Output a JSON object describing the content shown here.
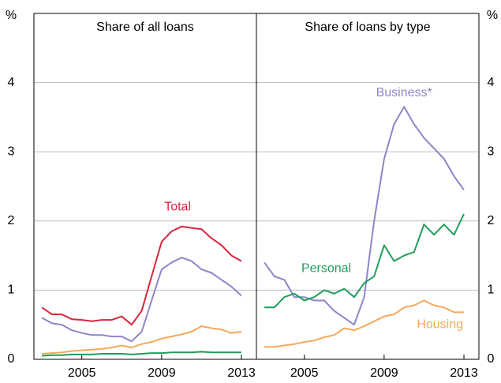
{
  "chart_data": [
    {
      "type": "line",
      "title": "Share of all loans",
      "y_unit": "%",
      "x": [
        2003,
        2003.5,
        2004,
        2004.5,
        2005,
        2005.5,
        2006,
        2006.5,
        2007,
        2007.5,
        2008,
        2008.5,
        2009,
        2009.5,
        2010,
        2010.5,
        2011,
        2011.5,
        2012,
        2012.5,
        2013
      ],
      "xlim": [
        2002.6,
        2013.75
      ],
      "xticks": [
        2005,
        2009,
        2013
      ],
      "ylim": [
        0,
        5
      ],
      "yticks": [
        0,
        1,
        2,
        3,
        4
      ],
      "grid": true,
      "series": [
        {
          "name": "Total",
          "color": "#d7263d",
          "values": [
            0.75,
            0.65,
            0.65,
            0.58,
            0.57,
            0.55,
            0.57,
            0.57,
            0.62,
            0.5,
            0.7,
            1.2,
            1.7,
            1.85,
            1.92,
            1.9,
            1.88,
            1.75,
            1.65,
            1.5,
            1.42
          ]
        },
        {
          "color": "#8c86c9",
          "values": [
            0.6,
            0.52,
            0.5,
            0.42,
            0.38,
            0.35,
            0.35,
            0.33,
            0.33,
            0.26,
            0.4,
            0.85,
            1.3,
            1.4,
            1.47,
            1.42,
            1.3,
            1.25,
            1.15,
            1.05,
            0.92
          ]
        },
        {
          "color": "#f5a85a",
          "values": [
            0.08,
            0.09,
            0.1,
            0.12,
            0.13,
            0.14,
            0.15,
            0.17,
            0.2,
            0.17,
            0.22,
            0.25,
            0.3,
            0.33,
            0.36,
            0.4,
            0.48,
            0.45,
            0.43,
            0.38,
            0.4
          ]
        },
        {
          "color": "#1e9e5a",
          "values": [
            0.05,
            0.06,
            0.06,
            0.07,
            0.07,
            0.07,
            0.08,
            0.08,
            0.08,
            0.07,
            0.08,
            0.09,
            0.09,
            0.1,
            0.1,
            0.1,
            0.11,
            0.1,
            0.1,
            0.1,
            0.1
          ]
        }
      ]
    },
    {
      "type": "line",
      "title": "Share of loans by type",
      "y_unit": "%",
      "x": [
        2003,
        2003.5,
        2004,
        2004.5,
        2005,
        2005.5,
        2006,
        2006.5,
        2007,
        2007.5,
        2008,
        2008.5,
        2009,
        2009.5,
        2010,
        2010.5,
        2011,
        2011.5,
        2012,
        2012.5,
        2013
      ],
      "xlim": [
        2002.6,
        2013.75
      ],
      "xticks": [
        2005,
        2009,
        2013
      ],
      "ylim": [
        0,
        5
      ],
      "yticks": [
        0,
        1,
        2,
        3,
        4
      ],
      "grid": true,
      "series": [
        {
          "name": "Business*",
          "color": "#8c86c9",
          "values": [
            1.4,
            1.2,
            1.15,
            0.9,
            0.9,
            0.85,
            0.85,
            0.7,
            0.6,
            0.5,
            0.9,
            2.0,
            2.9,
            3.4,
            3.65,
            3.4,
            3.2,
            3.05,
            2.9,
            2.65,
            2.45
          ]
        },
        {
          "name": "Personal",
          "color": "#1e9e5a",
          "values": [
            0.75,
            0.75,
            0.9,
            0.95,
            0.85,
            0.9,
            1.0,
            0.95,
            1.02,
            0.9,
            1.1,
            1.2,
            1.65,
            1.42,
            1.5,
            1.55,
            1.95,
            1.8,
            1.95,
            1.8,
            2.1
          ]
        },
        {
          "name": "Housing",
          "color": "#f5a85a",
          "values": [
            0.18,
            0.18,
            0.2,
            0.22,
            0.25,
            0.27,
            0.32,
            0.35,
            0.45,
            0.42,
            0.48,
            0.55,
            0.62,
            0.65,
            0.75,
            0.78,
            0.85,
            0.78,
            0.75,
            0.68,
            0.68
          ]
        }
      ]
    }
  ]
}
